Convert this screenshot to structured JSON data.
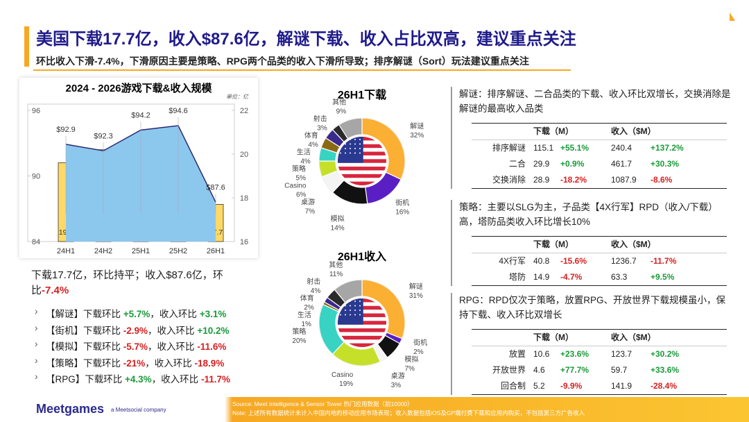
{
  "header": {
    "title": "美国下载17.7亿，收入$87.6亿，解谜下载、收入占比双高，建议重点关注",
    "subtitle": "环比收入下滑-7.4%，下滑原因主要是策略、RPG两个品类的收入下滑所导致；排序解谜（Sort）玩法建议重点关注"
  },
  "chart_data": [
    {
      "type": "combo",
      "title": "2024 - 2026游戏下载&收入规模",
      "unit": "单位：亿",
      "categories": [
        "24H1",
        "24H2",
        "25H1",
        "25H2",
        "26H1"
      ],
      "series": [
        {
          "type": "bar",
          "axis": "y2",
          "color": "#FFD966",
          "values": [
            19.6,
            20.2,
            19.3,
            17.7,
            17.7
          ]
        },
        {
          "type": "area",
          "color": "#8CC7EE",
          "values": [
            92.9,
            92.3,
            94.2,
            94.6,
            87.6
          ],
          "value_labels": [
            "$92.9",
            "$92.3",
            "$94.2",
            "$94.6",
            "$87.6"
          ]
        }
      ],
      "ylim": [
        84,
        96
      ],
      "yticks": [
        84,
        90,
        96
      ],
      "y2lim": [
        16,
        22
      ],
      "y2ticks": [
        16,
        18,
        20,
        22
      ]
    },
    {
      "type": "donut",
      "title": "26H1下载",
      "categories": [
        "解谜",
        "街机",
        "模拟",
        "桌游",
        "Casino",
        "策略",
        "生活",
        "体育",
        "射击",
        "其他"
      ],
      "values": [
        32,
        16,
        14,
        7,
        6,
        5,
        4,
        4,
        3,
        9
      ],
      "value_labels": [
        "32%",
        "16%",
        "14%",
        "7%",
        "6%",
        "5%",
        "4%",
        "4%",
        "3%",
        "9%"
      ],
      "colors": [
        "#FBB034",
        "#5A1FC4",
        "#111111",
        "#F4F4F4",
        "#C6E02A",
        "#38D3C3",
        "#8B6914",
        "#3A2A8C",
        "#2A2A2A",
        "#A6A6A6"
      ]
    },
    {
      "type": "donut",
      "title": "26H1收入",
      "categories": [
        "解谜",
        "街机",
        "模拟",
        "桌游",
        "Casino",
        "策略",
        "生活",
        "体育",
        "射击",
        "其他"
      ],
      "values": [
        31,
        2,
        7,
        3,
        19,
        20,
        1,
        2,
        4,
        11
      ],
      "value_labels": [
        "31%",
        "2%",
        "7%",
        "3%",
        "19%",
        "20%",
        "1%",
        "2%",
        "4%",
        "11%"
      ],
      "colors": [
        "#FBB034",
        "#5A1FC4",
        "#111111",
        "#F4F4F4",
        "#C6E02A",
        "#38D3C3",
        "#8B6914",
        "#3A2A8C",
        "#2A2A2A",
        "#A6A6A6"
      ]
    }
  ],
  "summary": {
    "headline": "下载17.7亿，环比持平；收入$87.6亿，环比",
    "headline_change": "-7.4%",
    "items": [
      {
        "label": "【解谜】下载环比",
        "download_change": "+5.7%",
        "separator": "，收入环比",
        "revenue_change": "+3.1%"
      },
      {
        "label": "【街机】下载环比",
        "download_change": "-2.9%",
        "separator": "，收入环比",
        "revenue_change": "+10.2%"
      },
      {
        "label": "【模拟】下载环比",
        "download_change": "-5.7%",
        "separator": "，收入环比",
        "revenue_change": "-11.6%"
      },
      {
        "label": "【策略】下载环比",
        "download_change": "-21%",
        "separator": "，收入环比",
        "revenue_change": "-18.9%"
      },
      {
        "label": "【RPG】下载环比",
        "download_change": "+4.3%",
        "separator": "，收入环比",
        "revenue_change": "-11.7%"
      }
    ]
  },
  "sections": [
    {
      "text": "解谜：排序解谜、二合品类的下载、收入环比双增长，交换消除是解谜的最高收入品类",
      "columns": [
        "下载（M）",
        "收入（$M）"
      ],
      "rows": [
        {
          "name": "排序解谜",
          "download": 115.1,
          "download_change": "+55.1%",
          "revenue": 240.4,
          "revenue_change": "+137.2%"
        },
        {
          "name": "二合",
          "download": 29.9,
          "download_change": "+0.9%",
          "revenue": 461.7,
          "revenue_change": "+30.3%"
        },
        {
          "name": "交换消除",
          "download": 28.9,
          "download_change": "-18.2%",
          "revenue": 1087.9,
          "revenue_change": "-8.6%"
        }
      ]
    },
    {
      "text": "策略：主要以SLG为主，子品类【4X行军】RPD（收入/下载）高，塔防品类收入环比增长10%",
      "columns": [
        "下载（M）",
        "收入（$M）"
      ],
      "rows": [
        {
          "name": "4X行军",
          "download": 40.8,
          "download_change": "-15.6%",
          "revenue": 1236.7,
          "revenue_change": "-11.7%"
        },
        {
          "name": "塔防",
          "download": 14.9,
          "download_change": "-4.7%",
          "revenue": 63.3,
          "revenue_change": "+9.5%"
        }
      ]
    },
    {
      "text": "RPG：RPD仅次于策略，放置RPG、开放世界下载规模虽小，保持下载、收入环比双增长",
      "columns": [
        "下载（M）",
        "收入（$M）"
      ],
      "rows": [
        {
          "name": "放置",
          "download": 10.6,
          "download_change": "+23.6%",
          "revenue": 123.7,
          "revenue_change": "+30.2%"
        },
        {
          "name": "开放世界",
          "download": 4.6,
          "download_change": "+77.7%",
          "revenue": 59.7,
          "revenue_change": "+33.6%"
        },
        {
          "name": "回合制",
          "download": 5.2,
          "download_change": "-9.9%",
          "revenue": 141.9,
          "revenue_change": "-28.4%"
        }
      ]
    }
  ],
  "footer": {
    "brand": "Meetgames",
    "tagline": "a Meetsocial company",
    "source": "Source: Meet Intelligence & Sensor Tower 热门应用数据（前10000）",
    "note": "Note: 上述所有数据统计未计入中国内地的移动应用市场表现；收入数据包括iOS及GP端付费下载和应用内购买，不包括第三方广告收入"
  }
}
